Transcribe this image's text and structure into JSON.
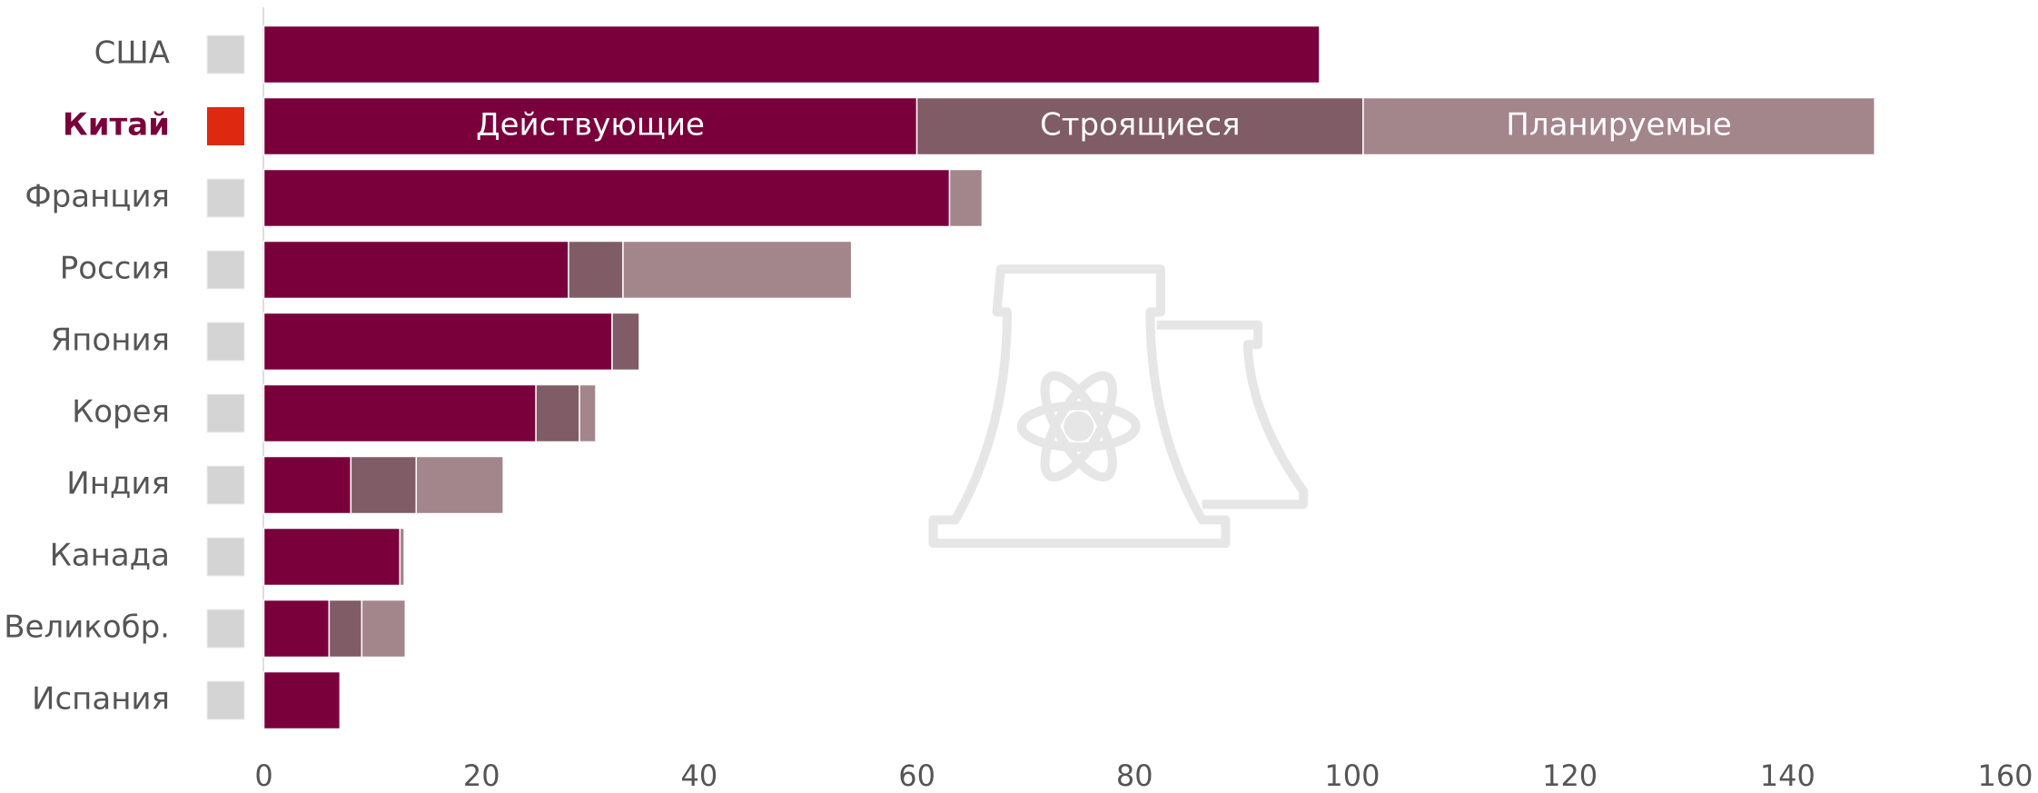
{
  "chart_data": {
    "type": "stacked-bar-horizontal",
    "categories": [
      "США",
      "Китай",
      "Франция",
      "Россия",
      "Япония",
      "Корея",
      "Индия",
      "Канада",
      "Великобр.",
      "Испания"
    ],
    "series": [
      {
        "name": "Действующие",
        "color": "#7a003c",
        "values": [
          97,
          60,
          63,
          28,
          32,
          25,
          8,
          12.5,
          6,
          7
        ]
      },
      {
        "name": "Строящиеся",
        "color": "#7f5c66",
        "values": [
          0,
          41,
          0,
          5,
          2.5,
          4,
          6,
          0,
          3,
          0
        ]
      },
      {
        "name": "Планируемые",
        "color": "#a3858c",
        "values": [
          0,
          47,
          3,
          21,
          0,
          1.5,
          8,
          0.4,
          4,
          0
        ]
      }
    ],
    "xlim": [
      0,
      160
    ],
    "xticks": [
      0,
      20,
      40,
      60,
      80,
      100,
      120,
      140,
      160
    ],
    "highlight_index": 1,
    "legend_in_bar_index": 1,
    "grid": false
  }
}
